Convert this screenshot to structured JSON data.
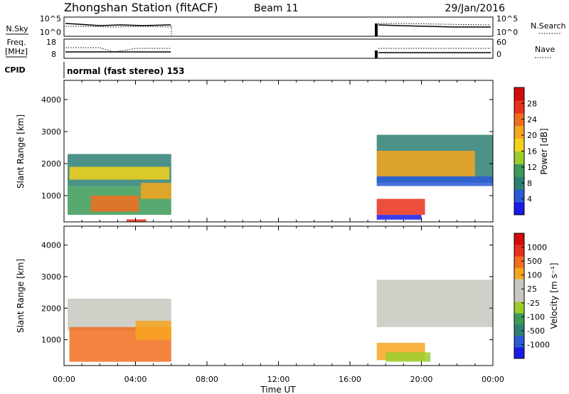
{
  "header": {
    "station": "Zhongshan Station (fitACF)",
    "beam": "Beam 11",
    "date": "29/Jan/2016"
  },
  "panels": {
    "nsky": {
      "label": "N.Sky",
      "ticks": [
        "10^5",
        "10^0"
      ],
      "right_label": "N.Search",
      "right_ticks": [
        "10^5",
        "10^0"
      ]
    },
    "freq": {
      "label_1": "Freq.",
      "label_2": "[MHz]",
      "ticks": [
        "18",
        "8"
      ],
      "right_label": "Nave",
      "right_ticks": [
        "60",
        "0"
      ]
    },
    "cpid": {
      "label": "CPID",
      "mode": "normal (fast stereo) 153"
    }
  },
  "chart_data": [
    {
      "type": "heatmap",
      "panel": "power",
      "ylabel": "Slant Range [km]",
      "yticks": [
        "4000",
        "3000",
        "2000",
        "1000"
      ],
      "ylim": [
        180,
        4600
      ],
      "xlim_hours": [
        0,
        24
      ],
      "colorbar": {
        "label": "Power [dB]",
        "ticks": [
          "28",
          "24",
          "20",
          "16",
          "12",
          "8",
          "4"
        ],
        "colors": [
          "#1a1ae6",
          "#2a5bd7",
          "#2e7f73",
          "#3a9a57",
          "#9ccd2c",
          "#f4d21b",
          "#f6a51f",
          "#f26d1e",
          "#e9301a",
          "#d40b0b"
        ]
      },
      "regions": [
        {
          "t0": 0.2,
          "t1": 6.0,
          "r0": 1300,
          "r1": 2300,
          "color": "#2e7f73"
        },
        {
          "t0": 0.3,
          "t1": 5.9,
          "r0": 1500,
          "r1": 1900,
          "color": "#f4d21b"
        },
        {
          "t0": 0.2,
          "t1": 6.0,
          "r0": 400,
          "r1": 1300,
          "color": "#3a9a57"
        },
        {
          "t0": 1.5,
          "t1": 4.2,
          "r0": 500,
          "r1": 1000,
          "color": "#f26d1e"
        },
        {
          "t0": 4.3,
          "t1": 6.0,
          "r0": 900,
          "r1": 1400,
          "color": "#f6a51f"
        },
        {
          "t0": 3.5,
          "t1": 4.6,
          "r0": 180,
          "r1": 260,
          "color": "#e9301a"
        },
        {
          "t0": 17.5,
          "t1": 24.0,
          "r0": 1400,
          "r1": 2900,
          "color": "#2e7f73"
        },
        {
          "t0": 17.5,
          "t1": 23.0,
          "r0": 1600,
          "r1": 2400,
          "color": "#f6a51f"
        },
        {
          "t0": 17.5,
          "t1": 24.0,
          "r0": 1300,
          "r1": 1600,
          "color": "#2a5bd7"
        },
        {
          "t0": 17.5,
          "t1": 20.2,
          "r0": 400,
          "r1": 900,
          "color": "#e9301a"
        },
        {
          "t0": 17.5,
          "t1": 20.0,
          "r0": 250,
          "r1": 400,
          "color": "#1a1ae6"
        }
      ]
    },
    {
      "type": "heatmap",
      "panel": "velocity",
      "xlabel": "Time UT",
      "ylabel": "Slant Range [km]",
      "yticks": [
        "4000",
        "3000",
        "2000",
        "1000"
      ],
      "xticks": [
        "00:00",
        "04:00",
        "08:00",
        "12:00",
        "16:00",
        "20:00",
        "00:00"
      ],
      "ylim": [
        180,
        4600
      ],
      "xlim_hours": [
        0,
        24
      ],
      "colorbar": {
        "label": "Velocity [m s⁻¹]",
        "ticks": [
          "1000",
          "500",
          "100",
          "25",
          "-25",
          "-100",
          "-500",
          "-1000"
        ],
        "colors": [
          "#1a1ae6",
          "#2a5bd7",
          "#2e7f73",
          "#3a9a57",
          "#9ccd2c",
          "#c8c8c0",
          "#c8c8c0",
          "#f6a51f",
          "#f26d1e",
          "#e9301a",
          "#d40b0b"
        ]
      },
      "regions": [
        {
          "t0": 0.2,
          "t1": 6.0,
          "r0": 1300,
          "r1": 2300,
          "color": "#c8c8c0"
        },
        {
          "t0": 0.3,
          "t1": 6.0,
          "r0": 300,
          "r1": 1400,
          "color": "#f26d1e"
        },
        {
          "t0": 4.0,
          "t1": 6.0,
          "r0": 1000,
          "r1": 1600,
          "color": "#f6a51f"
        },
        {
          "t0": 17.5,
          "t1": 24.0,
          "r0": 1400,
          "r1": 2900,
          "color": "#c8c8c0"
        },
        {
          "t0": 17.5,
          "t1": 20.2,
          "r0": 350,
          "r1": 900,
          "color": "#f6a51f"
        },
        {
          "t0": 18.0,
          "t1": 20.5,
          "r0": 300,
          "r1": 600,
          "color": "#9ccd2c"
        }
      ]
    }
  ]
}
